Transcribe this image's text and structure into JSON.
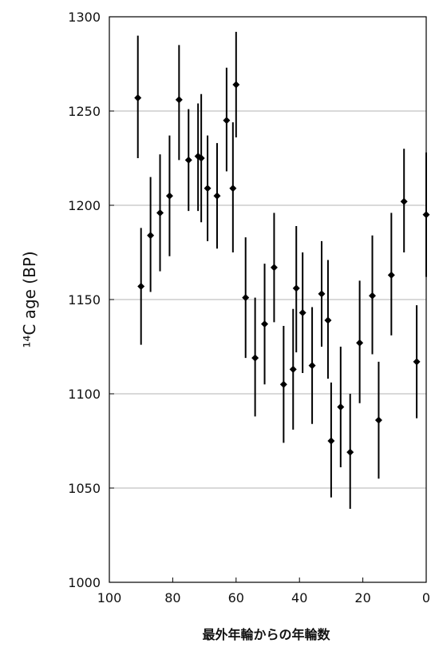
{
  "chart_data": {
    "type": "scatter",
    "title": "",
    "xlabel": "最外年輪からの年輪数",
    "ylabel": "¹⁴C age (BP)",
    "xlim": [
      100,
      0
    ],
    "ylim": [
      1000,
      1300
    ],
    "x_ticks": [
      "100",
      "80",
      "60",
      "40",
      "20",
      "0"
    ],
    "y_ticks": [
      "1000",
      "1050",
      "1100",
      "1150",
      "1200",
      "1250",
      "1300"
    ],
    "grid": "horizontal",
    "legend": "none",
    "marker_color": "#000000",
    "points": [
      {
        "x": 91,
        "y": 1257,
        "err_low": 1225,
        "err_high": 1290
      },
      {
        "x": 90,
        "y": 1157,
        "err_low": 1126,
        "err_high": 1188
      },
      {
        "x": 87,
        "y": 1184,
        "err_low": 1154,
        "err_high": 1215
      },
      {
        "x": 84,
        "y": 1196,
        "err_low": 1165,
        "err_high": 1227
      },
      {
        "x": 81,
        "y": 1205,
        "err_low": 1173,
        "err_high": 1237
      },
      {
        "x": 78,
        "y": 1256,
        "err_low": 1224,
        "err_high": 1285
      },
      {
        "x": 75,
        "y": 1224,
        "err_low": 1197,
        "err_high": 1251
      },
      {
        "x": 72,
        "y": 1226,
        "err_low": 1197,
        "err_high": 1254
      },
      {
        "x": 71,
        "y": 1225,
        "err_low": 1191,
        "err_high": 1259
      },
      {
        "x": 69,
        "y": 1209,
        "err_low": 1181,
        "err_high": 1237
      },
      {
        "x": 66,
        "y": 1205,
        "err_low": 1177,
        "err_high": 1233
      },
      {
        "x": 63,
        "y": 1245,
        "err_low": 1218,
        "err_high": 1273
      },
      {
        "x": 61,
        "y": 1209,
        "err_low": 1175,
        "err_high": 1244
      },
      {
        "x": 60,
        "y": 1264,
        "err_low": 1236,
        "err_high": 1292
      },
      {
        "x": 57,
        "y": 1151,
        "err_low": 1119,
        "err_high": 1183
      },
      {
        "x": 54,
        "y": 1119,
        "err_low": 1088,
        "err_high": 1151
      },
      {
        "x": 51,
        "y": 1137,
        "err_low": 1105,
        "err_high": 1169
      },
      {
        "x": 48,
        "y": 1167,
        "err_low": 1138,
        "err_high": 1196
      },
      {
        "x": 45,
        "y": 1105,
        "err_low": 1074,
        "err_high": 1136
      },
      {
        "x": 42,
        "y": 1113,
        "err_low": 1081,
        "err_high": 1145
      },
      {
        "x": 41,
        "y": 1156,
        "err_low": 1122,
        "err_high": 1189
      },
      {
        "x": 39,
        "y": 1143,
        "err_low": 1111,
        "err_high": 1175
      },
      {
        "x": 36,
        "y": 1115,
        "err_low": 1084,
        "err_high": 1146
      },
      {
        "x": 33,
        "y": 1153,
        "err_low": 1125,
        "err_high": 1181
      },
      {
        "x": 31,
        "y": 1139,
        "err_low": 1108,
        "err_high": 1171
      },
      {
        "x": 30,
        "y": 1075,
        "err_low": 1045,
        "err_high": 1106
      },
      {
        "x": 27,
        "y": 1093,
        "err_low": 1061,
        "err_high": 1125
      },
      {
        "x": 24,
        "y": 1069,
        "err_low": 1039,
        "err_high": 1100
      },
      {
        "x": 21,
        "y": 1127,
        "err_low": 1095,
        "err_high": 1160
      },
      {
        "x": 17,
        "y": 1152,
        "err_low": 1121,
        "err_high": 1184
      },
      {
        "x": 15,
        "y": 1086,
        "err_low": 1055,
        "err_high": 1117
      },
      {
        "x": 11,
        "y": 1163,
        "err_low": 1131,
        "err_high": 1196
      },
      {
        "x": 7,
        "y": 1202,
        "err_low": 1175,
        "err_high": 1230
      },
      {
        "x": 3,
        "y": 1117,
        "err_low": 1087,
        "err_high": 1147
      },
      {
        "x": 0,
        "y": 1195,
        "err_low": 1162,
        "err_high": 1228
      }
    ]
  }
}
